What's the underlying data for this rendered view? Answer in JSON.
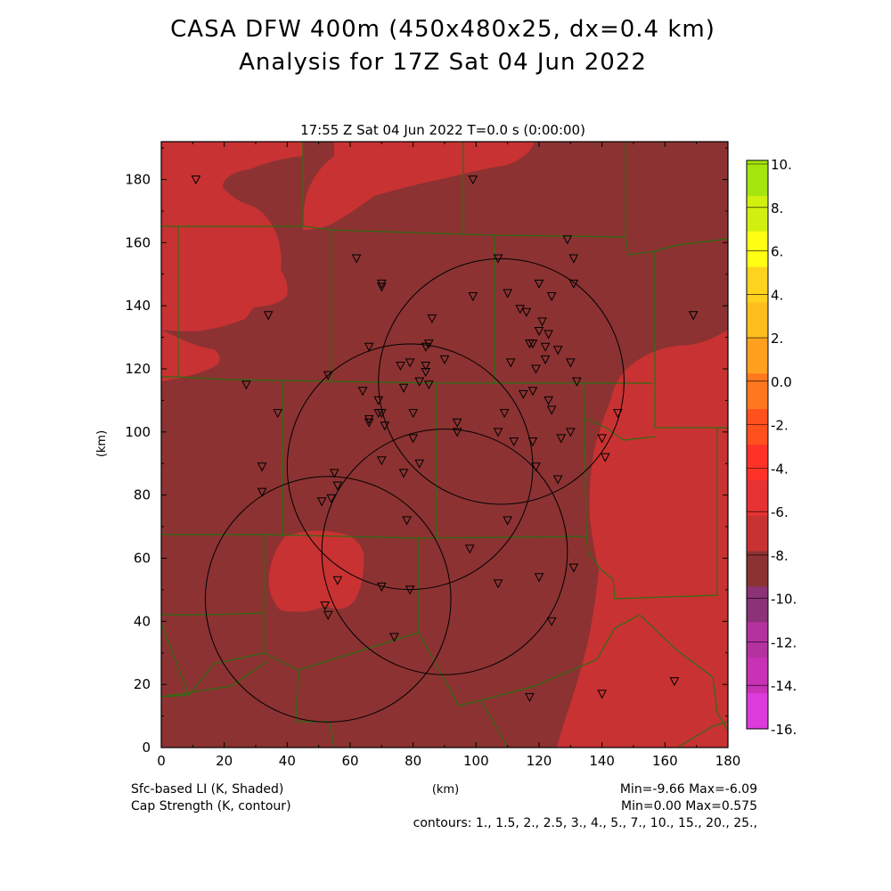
{
  "title": {
    "line1": "CASA DFW 400m (450x480x25, dx=0.4 km)",
    "line2": "Analysis for 17Z Sat 04 Jun 2022"
  },
  "plot_header": "17:55 Z Sat 04 Jun 2022    T=0.0 s (0:00:00)",
  "axes": {
    "xlabel": "(km)",
    "ylabel": "(km)",
    "xrange": [
      0,
      180
    ],
    "yrange": [
      0,
      192
    ],
    "xticks": [
      "0",
      "20",
      "40",
      "60",
      "80",
      "100",
      "120",
      "140",
      "160",
      "180"
    ],
    "yticks": [
      "0",
      "20",
      "40",
      "60",
      "80",
      "100",
      "120",
      "140",
      "160",
      "180"
    ]
  },
  "colorbar": {
    "labels": [
      "10.",
      "8.",
      "6.",
      "4.",
      "2.",
      "0.0",
      "-2.",
      "-4.",
      "-6.",
      "-8.",
      "-10.",
      "-12.",
      "-14.",
      "-16."
    ],
    "colors": [
      "#a6e60f",
      "#d2f00f",
      "#ffff14",
      "#ffd21e",
      "#ffbe1e",
      "#ffa01e",
      "#ff781e",
      "#ff501e",
      "#ff3228",
      "#e63232",
      "#c83232",
      "#8c3232",
      "#8c3278",
      "#b432a0",
      "#c832b4",
      "#dc3cdc"
    ]
  },
  "footer": {
    "left1": "Sfc-based LI (K, Shaded)",
    "left2": "Cap Strength (K, contour)",
    "center": "(km)",
    "right1": "Min=-9.66 Max=-6.09",
    "right2": "Min=0.00 Max=0.575",
    "contours": "contours: 1., 1.5, 2., 2.5, 3., 4., 5., 7., 10., 15., 20., 25.,"
  },
  "map_colors": {
    "dark_field": "#8c3232",
    "light_field": "#c83232",
    "county_lines": "#2d6e14",
    "radar_rings": "#000000"
  },
  "radars": [
    {
      "cx": 108,
      "cy": 116,
      "r": 39
    },
    {
      "cx": 79,
      "cy": 89,
      "r": 39
    },
    {
      "cx": 90,
      "cy": 62,
      "r": 39
    },
    {
      "cx": 53,
      "cy": 47,
      "r": 39
    }
  ],
  "stations": [
    [
      11,
      180
    ],
    [
      99,
      180
    ],
    [
      62,
      155
    ],
    [
      70,
      147
    ],
    [
      70,
      146
    ],
    [
      34,
      137
    ],
    [
      86,
      136
    ],
    [
      107,
      155
    ],
    [
      129,
      161
    ],
    [
      131,
      155
    ],
    [
      131,
      147
    ],
    [
      120,
      147
    ],
    [
      124,
      143
    ],
    [
      110,
      144
    ],
    [
      99,
      143
    ],
    [
      114,
      139
    ],
    [
      116,
      138
    ],
    [
      121,
      135
    ],
    [
      123,
      131
    ],
    [
      120,
      132
    ],
    [
      117,
      128
    ],
    [
      118,
      128
    ],
    [
      122,
      127
    ],
    [
      126,
      126
    ],
    [
      122,
      123
    ],
    [
      111,
      122
    ],
    [
      119,
      120
    ],
    [
      130,
      122
    ],
    [
      132,
      116
    ],
    [
      115,
      112
    ],
    [
      118,
      113
    ],
    [
      109,
      106
    ],
    [
      124,
      107
    ],
    [
      123,
      110
    ],
    [
      107,
      100
    ],
    [
      112,
      97
    ],
    [
      118,
      97
    ],
    [
      127,
      98
    ],
    [
      130,
      100
    ],
    [
      140,
      98
    ],
    [
      141,
      92
    ],
    [
      145,
      106
    ],
    [
      126,
      85
    ],
    [
      119,
      89
    ],
    [
      94,
      103
    ],
    [
      94,
      100
    ],
    [
      85,
      128
    ],
    [
      84,
      127
    ],
    [
      90,
      123
    ],
    [
      84,
      121
    ],
    [
      84,
      119
    ],
    [
      82,
      116
    ],
    [
      85,
      115
    ],
    [
      76,
      121
    ],
    [
      79,
      122
    ],
    [
      66,
      127
    ],
    [
      64,
      113
    ],
    [
      53,
      118
    ],
    [
      27,
      115
    ],
    [
      37,
      106
    ],
    [
      69,
      110
    ],
    [
      69,
      106
    ],
    [
      70,
      106
    ],
    [
      66,
      104
    ],
    [
      66,
      103
    ],
    [
      71,
      102
    ],
    [
      77,
      114
    ],
    [
      80,
      106
    ],
    [
      80,
      98
    ],
    [
      70,
      91
    ],
    [
      82,
      90
    ],
    [
      77,
      87
    ],
    [
      32,
      89
    ],
    [
      32,
      81
    ],
    [
      55,
      87
    ],
    [
      56,
      83
    ],
    [
      54,
      79
    ],
    [
      51,
      78
    ],
    [
      78,
      72
    ],
    [
      110,
      72
    ],
    [
      98,
      63
    ],
    [
      131,
      57
    ],
    [
      120,
      54
    ],
    [
      107,
      52
    ],
    [
      56,
      53
    ],
    [
      70,
      51
    ],
    [
      79,
      50
    ],
    [
      52,
      45
    ],
    [
      53,
      42
    ],
    [
      74,
      35
    ],
    [
      124,
      40
    ],
    [
      117,
      16
    ],
    [
      140,
      17
    ],
    [
      163,
      21
    ],
    [
      169,
      137
    ]
  ]
}
